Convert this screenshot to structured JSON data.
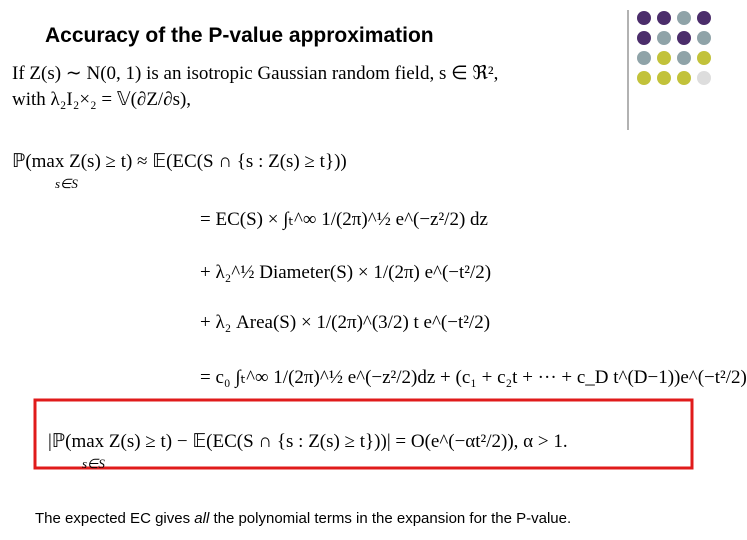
{
  "title": "Accuracy of the P-value approximation",
  "math": [
    "If Z(s) ∼ N(0, 1) is an isotropic Gaussian random field, s ∈ ℜ²,",
    "with λ₂I₂×₂ = 𝕍(∂Z/∂s),",
    "ℙ(max Z(s) ≥ t) ≈ 𝔼(EC(S ∩ {s : Z(s) ≥ t}))",
    "s∈S",
    "= EC(S) × ∫ₜ^∞ 1/(2π)^½ e^(−z²/2) dz",
    "+ λ₂^½ Diameter(S) × 1/(2π) e^(−t²/2)",
    "+ λ₂ Area(S) × 1/(2π)^(3/2) t e^(−t²/2)",
    "= c₀ ∫ₜ^∞ 1/(2π)^½ e^(−z²/2)dz + (c₁ + c₂t + ··· + c_D t^(D−1))e^(−t²/2)",
    "|ℙ(max Z(s) ≥ t) − 𝔼(EC(S ∩ {s : Z(s) ≥ t}))| = O(e^(−αt²/2)),   α > 1.",
    "s∈S"
  ],
  "caption": {
    "before": "The expected EC gives ",
    "emphasis": "all",
    "after": " the polynomial terms in the expansion for the P-value."
  }
}
